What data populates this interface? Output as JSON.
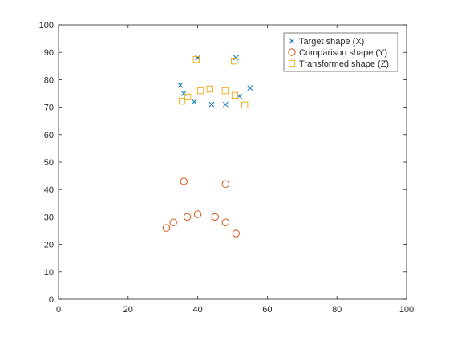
{
  "chart_data": {
    "type": "scatter",
    "xlim": [
      0,
      100
    ],
    "xticks": [
      0,
      20,
      40,
      60,
      80,
      100
    ],
    "ylim": [
      0,
      100
    ],
    "yticks": [
      0,
      10,
      20,
      30,
      40,
      50,
      60,
      70,
      80,
      90,
      100
    ],
    "legend": "northeast",
    "series": [
      {
        "name": "Target shape (X)",
        "color": "#0072BD",
        "marker": "x",
        "x": [
          40,
          51,
          35,
          36,
          39,
          44,
          48,
          52,
          55
        ],
        "values": [
          88,
          88,
          78,
          75,
          72,
          71,
          71,
          74,
          77
        ]
      },
      {
        "name": "Comparison shape (Y)",
        "color": "#D95319",
        "marker": "o",
        "x": [
          36,
          48,
          31,
          33,
          37,
          40,
          45,
          48,
          51
        ],
        "values": [
          43,
          42,
          26,
          28,
          30,
          31,
          30,
          28,
          24
        ]
      },
      {
        "name": "Transformed shape (Z)",
        "color": "#EDB120",
        "marker": "s",
        "x": [
          39.6,
          50.5,
          35.5,
          37.1,
          40.8,
          43.5,
          47.9,
          50.7,
          53.5
        ],
        "values": [
          87.4,
          86.8,
          72.2,
          73.7,
          76,
          76.6,
          76,
          74.3,
          70.8
        ]
      }
    ]
  }
}
